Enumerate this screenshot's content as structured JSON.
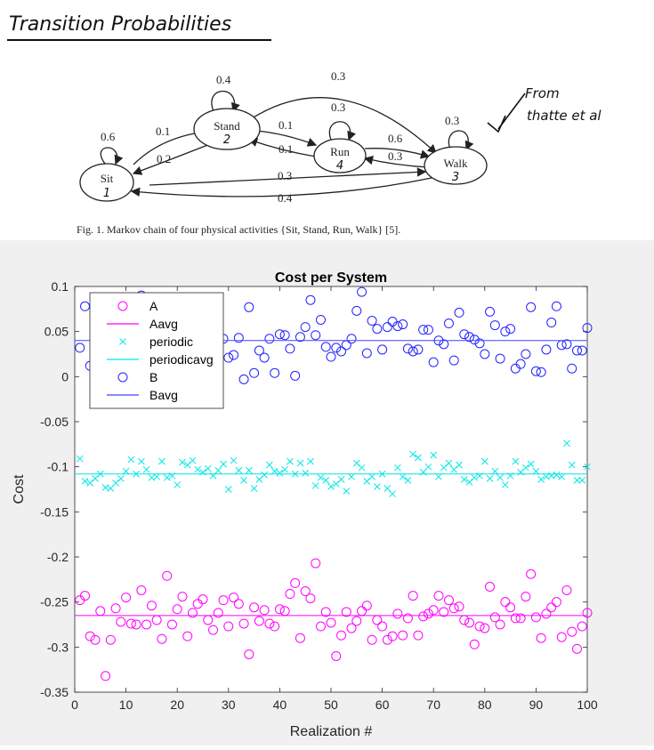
{
  "notes": {
    "heading": "Transition Probabilities",
    "attribution_line1": "From",
    "attribution_line2": "thatte et al"
  },
  "diagram": {
    "states": [
      {
        "id": "sit",
        "label": "Sit",
        "number": "1"
      },
      {
        "id": "stand",
        "label": "Stand",
        "number": "2"
      },
      {
        "id": "run",
        "label": "Run",
        "number": "4"
      },
      {
        "id": "walk",
        "label": "Walk",
        "number": "3"
      }
    ],
    "transitions": {
      "sit_sit": "0.6",
      "stand_stand": "0.4",
      "run_run": "0.3",
      "walk_walk": "0.3",
      "sit_stand": "0.1",
      "stand_sit": "0.2",
      "stand_run": "0.1",
      "run_stand": "0.1",
      "run_walk": "0.6",
      "walk_run": "0.3",
      "stand_walk": "0.3",
      "sit_walk": "0.3",
      "walk_sit": "0.4"
    },
    "caption": "Fig. 1.   Markov chain of four physical activities {Sit, Stand, Run, Walk} [5]."
  },
  "chart_data": {
    "type": "scatter",
    "title": "Cost per System",
    "xlabel": "Realization #",
    "ylabel": "Cost",
    "xlim": [
      0,
      100
    ],
    "ylim": [
      -0.35,
      0.1
    ],
    "xticks": [
      "0",
      "10",
      "20",
      "30",
      "40",
      "50",
      "60",
      "70",
      "80",
      "90",
      "100"
    ],
    "yticks": [
      "0.1",
      "0.05",
      "0",
      "-0.05",
      "-0.1",
      "-0.15",
      "-0.2",
      "-0.25",
      "-0.3",
      "-0.35"
    ],
    "grid": false,
    "legend_position": "top-left",
    "series": [
      {
        "name": "A",
        "marker": "circle",
        "color": "#ff00ff",
        "x": [
          1,
          2,
          3,
          4,
          5,
          6,
          7,
          8,
          9,
          10,
          11,
          12,
          13,
          14,
          15,
          16,
          17,
          18,
          19,
          20,
          21,
          22,
          23,
          24,
          25,
          26,
          27,
          28,
          29,
          30,
          31,
          32,
          33,
          34,
          35,
          36,
          37,
          38,
          39,
          40,
          41,
          42,
          43,
          44,
          45,
          46,
          47,
          48,
          49,
          50,
          51,
          52,
          53,
          54,
          55,
          56,
          57,
          58,
          59,
          60,
          61,
          62,
          63,
          64,
          65,
          66,
          67,
          68,
          69,
          70,
          71,
          72,
          73,
          74,
          75,
          76,
          77,
          78,
          79,
          80,
          81,
          82,
          83,
          84,
          85,
          86,
          87,
          88,
          89,
          90,
          91,
          92,
          93,
          94,
          95,
          96,
          97,
          98,
          99,
          100
        ],
        "y": [
          -0.248,
          -0.243,
          -0.288,
          -0.292,
          -0.26,
          -0.332,
          -0.292,
          -0.257,
          -0.272,
          -0.245,
          -0.274,
          -0.275,
          -0.237,
          -0.275,
          -0.254,
          -0.27,
          -0.291,
          -0.221,
          -0.275,
          -0.258,
          -0.244,
          -0.288,
          -0.262,
          -0.252,
          -0.247,
          -0.27,
          -0.281,
          -0.262,
          -0.248,
          -0.277,
          -0.245,
          -0.252,
          -0.274,
          -0.308,
          -0.256,
          -0.271,
          -0.259,
          -0.274,
          -0.277,
          -0.258,
          -0.26,
          -0.241,
          -0.229,
          -0.29,
          -0.238,
          -0.246,
          -0.207,
          -0.277,
          -0.261,
          -0.273,
          -0.31,
          -0.287,
          -0.261,
          -0.279,
          -0.271,
          -0.26,
          -0.254,
          -0.292,
          -0.27,
          -0.277,
          -0.292,
          -0.288,
          -0.263,
          -0.287,
          -0.268,
          -0.243,
          -0.287,
          -0.266,
          -0.263,
          -0.259,
          -0.243,
          -0.261,
          -0.248,
          -0.257,
          -0.255,
          -0.27,
          -0.273,
          -0.297,
          -0.277,
          -0.279,
          -0.233,
          -0.267,
          -0.275,
          -0.25,
          -0.256,
          -0.268,
          -0.268,
          -0.244,
          -0.219,
          -0.267,
          -0.29,
          -0.263,
          -0.256,
          -0.25,
          -0.289,
          -0.237,
          -0.283,
          -0.302,
          -0.277,
          -0.262
        ]
      },
      {
        "name": "Aavg",
        "line": true,
        "color": "#ff00ff",
        "y_const": -0.265
      },
      {
        "name": "periodic",
        "marker": "x",
        "color": "#00e6e6",
        "x": [
          1,
          2,
          3,
          4,
          5,
          6,
          7,
          8,
          9,
          10,
          11,
          12,
          13,
          14,
          15,
          16,
          17,
          18,
          19,
          20,
          21,
          22,
          23,
          24,
          25,
          26,
          27,
          28,
          29,
          30,
          31,
          32,
          33,
          34,
          35,
          36,
          37,
          38,
          39,
          40,
          41,
          42,
          43,
          44,
          45,
          46,
          47,
          48,
          49,
          50,
          51,
          52,
          53,
          54,
          55,
          56,
          57,
          58,
          59,
          60,
          61,
          62,
          63,
          64,
          65,
          66,
          67,
          68,
          69,
          70,
          71,
          72,
          73,
          74,
          75,
          76,
          77,
          78,
          79,
          80,
          81,
          82,
          83,
          84,
          85,
          86,
          87,
          88,
          89,
          90,
          91,
          92,
          93,
          94,
          95,
          96,
          97,
          98,
          99,
          100
        ],
        "y": [
          -0.091,
          -0.116,
          -0.118,
          -0.113,
          -0.108,
          -0.123,
          -0.124,
          -0.118,
          -0.113,
          -0.105,
          -0.092,
          -0.108,
          -0.094,
          -0.103,
          -0.112,
          -0.111,
          -0.094,
          -0.112,
          -0.11,
          -0.12,
          -0.095,
          -0.098,
          -0.093,
          -0.103,
          -0.106,
          -0.102,
          -0.11,
          -0.104,
          -0.097,
          -0.125,
          -0.093,
          -0.104,
          -0.115,
          -0.104,
          -0.124,
          -0.114,
          -0.109,
          -0.098,
          -0.105,
          -0.107,
          -0.103,
          -0.094,
          -0.108,
          -0.096,
          -0.107,
          -0.094,
          -0.121,
          -0.112,
          -0.115,
          -0.122,
          -0.119,
          -0.114,
          -0.127,
          -0.111,
          -0.096,
          -0.101,
          -0.116,
          -0.111,
          -0.122,
          -0.108,
          -0.124,
          -0.13,
          -0.101,
          -0.111,
          -0.115,
          -0.086,
          -0.09,
          -0.106,
          -0.1,
          -0.087,
          -0.111,
          -0.101,
          -0.096,
          -0.103,
          -0.098,
          -0.114,
          -0.117,
          -0.112,
          -0.11,
          -0.094,
          -0.113,
          -0.105,
          -0.112,
          -0.12,
          -0.11,
          -0.094,
          -0.106,
          -0.101,
          -0.097,
          -0.105,
          -0.114,
          -0.111,
          -0.11,
          -0.109,
          -0.111,
          -0.074,
          -0.098,
          -0.115,
          -0.115,
          -0.1
        ]
      },
      {
        "name": "periodicavg",
        "line": true,
        "color": "#00e6e6",
        "y_const": -0.108
      },
      {
        "name": "B",
        "marker": "circle",
        "color": "#2222ff",
        "x": [
          1,
          2,
          3,
          4,
          5,
          6,
          7,
          8,
          9,
          10,
          11,
          12,
          13,
          14,
          15,
          16,
          17,
          18,
          19,
          20,
          21,
          22,
          23,
          24,
          25,
          26,
          27,
          28,
          29,
          30,
          31,
          32,
          33,
          34,
          35,
          36,
          37,
          38,
          39,
          40,
          41,
          42,
          43,
          44,
          45,
          46,
          47,
          48,
          49,
          50,
          51,
          52,
          53,
          54,
          55,
          56,
          57,
          58,
          59,
          60,
          61,
          62,
          63,
          64,
          65,
          66,
          67,
          68,
          69,
          70,
          71,
          72,
          73,
          74,
          75,
          76,
          77,
          78,
          79,
          80,
          81,
          82,
          83,
          84,
          85,
          86,
          87,
          88,
          89,
          90,
          91,
          92,
          93,
          94,
          95,
          96,
          97,
          98,
          99,
          100
        ],
        "y": [
          0.032,
          0.078,
          0.012,
          0.061,
          0.052,
          0.045,
          0.038,
          0.048,
          0.034,
          0.055,
          0.045,
          0.03,
          0.09,
          0.04,
          0.034,
          0.046,
          0.052,
          0.039,
          0.036,
          0.043,
          0.045,
          0.035,
          0.05,
          0.038,
          0.042,
          0.03,
          0.045,
          0.034,
          0.042,
          0.021,
          0.024,
          0.043,
          -0.003,
          0.077,
          0.004,
          0.029,
          0.021,
          0.042,
          0.004,
          0.047,
          0.046,
          0.031,
          0.001,
          0.044,
          0.055,
          0.085,
          0.046,
          0.063,
          0.033,
          0.022,
          0.032,
          0.028,
          0.035,
          0.042,
          0.073,
          0.094,
          0.026,
          0.062,
          0.053,
          0.03,
          0.055,
          0.061,
          0.056,
          0.058,
          0.031,
          0.028,
          0.03,
          0.052,
          0.052,
          0.016,
          0.04,
          0.036,
          0.059,
          0.018,
          0.071,
          0.047,
          0.044,
          0.041,
          0.037,
          0.025,
          0.072,
          0.057,
          0.02,
          0.05,
          0.053,
          0.009,
          0.014,
          0.025,
          0.077,
          0.006,
          0.005,
          0.03,
          0.06,
          0.078,
          0.035,
          0.036,
          0.009,
          0.029,
          0.029,
          0.054
        ]
      },
      {
        "name": "Bavg",
        "line": true,
        "color": "#4444ff",
        "y_const": 0.04
      }
    ]
  }
}
